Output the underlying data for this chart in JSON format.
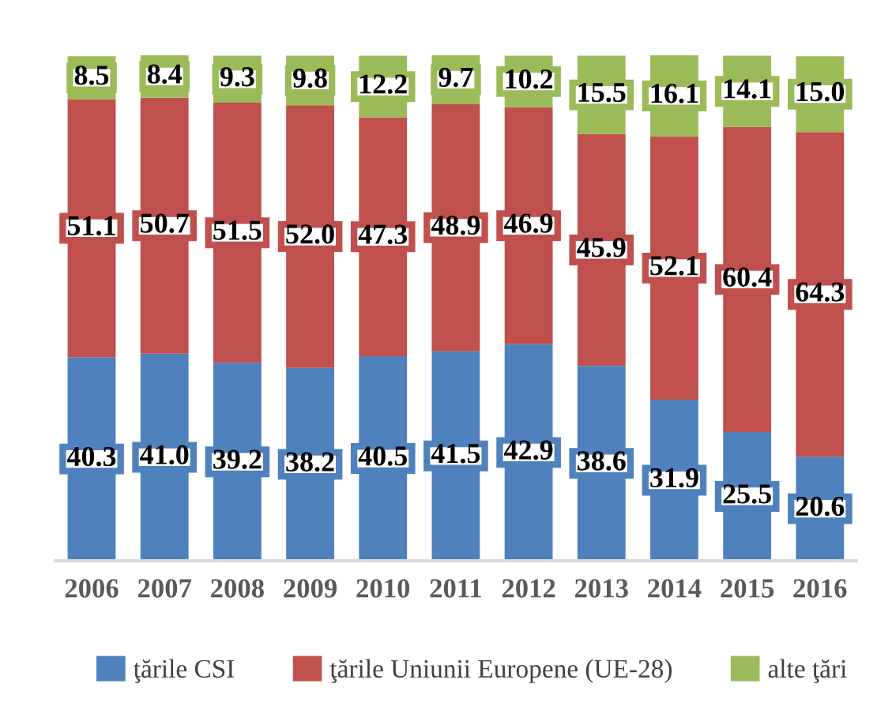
{
  "chart_data": {
    "type": "bar",
    "stacked": true,
    "legend": "bottom",
    "grid": false,
    "categories": [
      "2006",
      "2007",
      "2008",
      "2009",
      "2010",
      "2011",
      "2012",
      "2013",
      "2014",
      "2015",
      "2016"
    ],
    "series": [
      {
        "name": "ţările CSI",
        "color": "#4f81bd",
        "values": [
          40.3,
          41.0,
          39.2,
          38.2,
          40.5,
          41.5,
          42.9,
          38.6,
          31.9,
          25.5,
          20.6
        ],
        "value_labels": [
          "40.3",
          "41.0",
          "39.2",
          "38.2",
          "40.5",
          "41.5",
          "42.9",
          "38.6",
          "31.9",
          "25.5",
          "20.6"
        ]
      },
      {
        "name": "ţările Uniunii Europene (UE-28)",
        "color": "#c0504d",
        "values": [
          51.1,
          50.7,
          51.5,
          52.0,
          47.3,
          48.9,
          46.9,
          45.9,
          52.1,
          60.4,
          64.3
        ],
        "value_labels": [
          "51.1",
          "50.7",
          "51.5",
          "52.0",
          "47.3",
          "48.9",
          "46.9",
          "45.9",
          "52.1",
          "60.4",
          "64.3"
        ]
      },
      {
        "name": "alte ţări",
        "color": "#9bbb59",
        "values": [
          8.5,
          8.4,
          9.3,
          9.8,
          12.2,
          9.7,
          10.2,
          15.5,
          16.1,
          14.1,
          15.0
        ],
        "value_labels": [
          "8.5",
          "8.4",
          "9.3",
          "9.8",
          "12.2",
          "9.7",
          "10.2",
          "15.5",
          "16.1",
          "14.1",
          "15.0"
        ]
      }
    ]
  }
}
